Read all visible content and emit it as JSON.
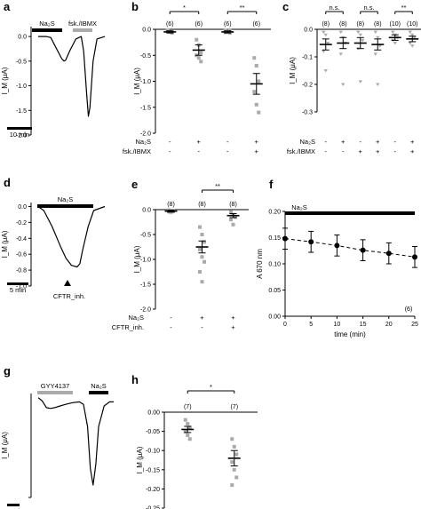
{
  "chart_data": [
    {
      "panel": "a",
      "type": "line",
      "bars": [
        "Na₂S",
        "fsk./IBMX"
      ],
      "ylabel": "I_M (μA)",
      "ylim": [
        -2.0,
        0.2
      ],
      "yticks": [
        "0.0",
        "-0.5",
        "-1.0",
        "-1.5",
        "-2.0"
      ],
      "scale_bar": "10 min",
      "trace": {
        "x": [
          0,
          10,
          16,
          25,
          30,
          33,
          35,
          40,
          48,
          55,
          58,
          62,
          64,
          66,
          70,
          75,
          85
        ],
        "y": [
          0,
          0,
          -0.02,
          -0.3,
          -0.45,
          -0.5,
          -0.48,
          -0.3,
          -0.05,
          0,
          -0.3,
          -1.2,
          -1.62,
          -1.45,
          -0.5,
          -0.05,
          0
        ]
      }
    },
    {
      "panel": "b",
      "type": "scatter",
      "ylabel": "I_M (μA)",
      "ylim": [
        -2.0,
        0.0
      ],
      "yticks": [
        "0.0",
        "-0.5",
        "-1.0",
        "-1.5",
        "-2.0"
      ],
      "n_labels": [
        "(6)",
        "(6)",
        "(6)",
        "(6)"
      ],
      "significance": [
        "*",
        "**"
      ],
      "row_labels": [
        "Na₂S",
        "fsk./IBMX"
      ],
      "row_signs": [
        [
          "-",
          "+",
          "-",
          "+"
        ],
        [
          "-",
          "-",
          "-",
          "+"
        ]
      ],
      "series": [
        {
          "means": [
            -0.05,
            -0.4,
            -0.05,
            -1.05
          ],
          "sem": [
            0.02,
            0.1,
            0.02,
            0.2
          ],
          "points": [
            [
              -0.02,
              -0.04,
              -0.06,
              -0.03,
              -0.05,
              -0.07
            ],
            [
              -0.2,
              -0.3,
              -0.45,
              -0.5,
              -0.55,
              -0.62
            ],
            [
              -0.02,
              -0.05,
              -0.03,
              -0.06,
              -0.04,
              -0.07
            ],
            [
              -0.55,
              -0.7,
              -1.0,
              -1.2,
              -1.45,
              -1.6
            ]
          ]
        }
      ]
    },
    {
      "panel": "c",
      "type": "scatter",
      "ylabel": "I_M (μA)",
      "ylim": [
        -0.3,
        0.0
      ],
      "yticks": [
        "0.0",
        "-0.1",
        "-0.2",
        "-0.3"
      ],
      "n_labels": [
        "(8)",
        "(8)",
        "(8)",
        "(8)",
        "(10)",
        "(10)"
      ],
      "significance": [
        "n.s.",
        "n.s.",
        "**"
      ],
      "row_labels": [
        "Na₂S",
        "fsk./IBMX"
      ],
      "row_signs": [
        [
          "-",
          "+",
          "-",
          "+",
          "-",
          "+"
        ],
        [
          "-",
          "-",
          "+",
          "+",
          "-",
          "+"
        ]
      ],
      "series": [
        {
          "means": [
            -0.055,
            -0.05,
            -0.05,
            -0.055,
            -0.03,
            -0.035
          ],
          "sem": [
            0.02,
            0.02,
            0.02,
            0.02,
            0.01,
            0.01
          ],
          "points": [
            [
              -0.01,
              -0.02,
              -0.05,
              -0.08,
              -0.15
            ],
            [
              -0.01,
              -0.03,
              -0.05,
              -0.09,
              -0.2
            ],
            [
              -0.01,
              -0.02,
              -0.04,
              -0.07,
              -0.19
            ],
            [
              -0.01,
              -0.03,
              -0.06,
              -0.09,
              -0.2
            ],
            [
              -0.01,
              -0.02,
              -0.03,
              -0.04,
              -0.05
            ],
            [
              -0.01,
              -0.02,
              -0.03,
              -0.05,
              -0.06
            ]
          ]
        }
      ]
    },
    {
      "panel": "d",
      "type": "line",
      "bars": [
        "Na₂S"
      ],
      "ylabel": "I_M (μA)",
      "ylim": [
        -1.0,
        0.05
      ],
      "yticks": [
        "0.0",
        "-0.2",
        "-0.4",
        "-0.6",
        "-0.8",
        "-1.0"
      ],
      "scale_bar": "5 min",
      "arrow_label": "CFTR_inh.",
      "trace": {
        "x": [
          0,
          2,
          5,
          8,
          10,
          12,
          14,
          15,
          16,
          18,
          20,
          24
        ],
        "y": [
          0,
          -0.05,
          -0.25,
          -0.5,
          -0.65,
          -0.74,
          -0.76,
          -0.72,
          -0.55,
          -0.25,
          -0.05,
          0
        ]
      }
    },
    {
      "panel": "e",
      "type": "scatter",
      "ylabel": "I_M (μA)",
      "ylim": [
        -2.0,
        0.0
      ],
      "yticks": [
        "0.0",
        "-0.5",
        "-1.0",
        "-1.5",
        "-2.0"
      ],
      "n_labels": [
        "(8)",
        "(8)",
        "(8)"
      ],
      "significance": [
        "**"
      ],
      "row_labels": [
        "Na₂S",
        "CFTR_inh."
      ],
      "row_signs": [
        [
          "-",
          "+",
          "+"
        ],
        [
          "-",
          "-",
          "+"
        ]
      ],
      "series": [
        {
          "means": [
            -0.03,
            -0.75,
            -0.12
          ],
          "sem": [
            0.02,
            0.12,
            0.04
          ],
          "points": [
            [
              -0.01,
              -0.02,
              -0.03,
              -0.04,
              -0.05
            ],
            [
              -0.35,
              -0.5,
              -0.65,
              -0.8,
              -0.95,
              -1.05,
              -1.25,
              -1.45
            ],
            [
              -0.05,
              -0.1,
              -0.15,
              -0.2,
              -0.3
            ]
          ]
        }
      ]
    },
    {
      "panel": "f",
      "type": "line",
      "bars": [
        "Na₂S"
      ],
      "ylabel": "A 670 nm",
      "xlabel": "time (min)",
      "xlim": [
        0,
        25
      ],
      "ylim": [
        0.0,
        0.2
      ],
      "xticks": [
        "0",
        "5",
        "10",
        "15",
        "20",
        "25"
      ],
      "yticks": [
        "0.00",
        "0.05",
        "0.10",
        "0.15",
        "0.20"
      ],
      "n_label": "(6)",
      "x": [
        0,
        5,
        10,
        15,
        20,
        25
      ],
      "values": [
        0.148,
        0.142,
        0.135,
        0.126,
        0.12,
        0.113
      ],
      "sem": [
        0.02,
        0.02,
        0.02,
        0.02,
        0.02,
        0.02
      ]
    },
    {
      "panel": "g",
      "type": "line",
      "bars": [
        "GYY4137",
        "Na₂S"
      ],
      "ylabel": "I_M (μA)",
      "ylim": [
        -1.2,
        0.05
      ],
      "scale_bar": "10 min",
      "trace": {
        "x": [
          0,
          3,
          6,
          9,
          12,
          16,
          20,
          25,
          30,
          33,
          36,
          38,
          40,
          42,
          44,
          48,
          52,
          55
        ],
        "y": [
          0,
          -0.04,
          -0.12,
          -0.13,
          -0.12,
          -0.1,
          -0.08,
          -0.06,
          -0.05,
          -0.08,
          -0.35,
          -0.85,
          -1.05,
          -0.8,
          -0.35,
          -0.1,
          -0.05,
          -0.05
        ]
      }
    },
    {
      "panel": "h",
      "type": "scatter",
      "ylabel": "I_M (μA)",
      "ylim": [
        -0.25,
        0.0
      ],
      "yticks": [
        "0.00",
        "-0.05",
        "-0.10",
        "-0.15",
        "-0.20",
        "-0.25"
      ],
      "n_labels": [
        "(7)",
        "(7)"
      ],
      "significance": [
        "*"
      ],
      "series": [
        {
          "means": [
            -0.045,
            -0.12
          ],
          "sem": [
            0.008,
            0.02
          ],
          "points": [
            [
              -0.02,
              -0.03,
              -0.04,
              -0.05,
              -0.06,
              -0.07
            ],
            [
              -0.07,
              -0.09,
              -0.11,
              -0.13,
              -0.15,
              -0.17,
              -0.19
            ]
          ]
        }
      ]
    }
  ]
}
